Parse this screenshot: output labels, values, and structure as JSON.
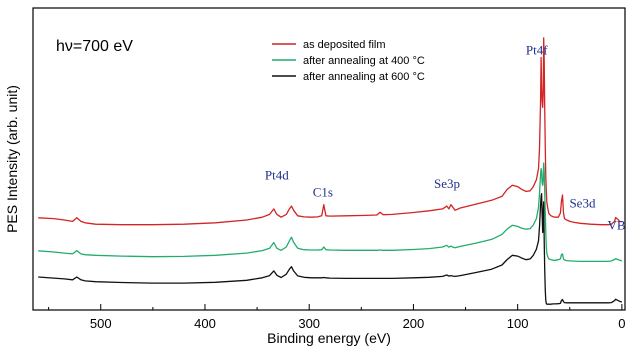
{
  "chart_data": {
    "type": "line",
    "xlabel": "Binding energy (eV)",
    "ylabel": "PES Intensity (arb. unit)",
    "xlim": [
      565,
      -3
    ],
    "ylim": [
      0,
      100
    ],
    "x_reversed": true,
    "xticks": [
      500,
      400,
      300,
      200,
      100,
      0
    ],
    "annotation_energy": "hν=700 eV",
    "peak_label_color": "#1f2f8f",
    "peak_labels": [
      {
        "text": "Pt4d",
        "x": 333,
        "y": 44
      },
      {
        "text": "C1s",
        "x": 285,
        "y": 38
      },
      {
        "text": "Se3p",
        "x": 162,
        "y": 41
      },
      {
        "text": "Pt4f",
        "x": 74,
        "y": 89
      },
      {
        "text": "Se3d",
        "x": 57,
        "y": 34
      },
      {
        "text": "VB",
        "x": 7,
        "y": 26
      }
    ],
    "legend": {
      "placement": "top-center"
    },
    "series": [
      {
        "name": "as deposited film",
        "color": "#d42424",
        "x": [
          560,
          545,
          535,
          527,
          523,
          519,
          515,
          505,
          480,
          450,
          420,
          390,
          360,
          345,
          338,
          334,
          331,
          327,
          322,
          319,
          317,
          315,
          311,
          305,
          298,
          292,
          288,
          286,
          284,
          280,
          265,
          250,
          235,
          232,
          229,
          220,
          200,
          185,
          172,
          168,
          166,
          164,
          162,
          160,
          155,
          140,
          125,
          115,
          110,
          105,
          100,
          96,
          92,
          88,
          85,
          82,
          80,
          79,
          78,
          77.5,
          77,
          76.5,
          76,
          75.5,
          75,
          74.5,
          74,
          73.5,
          73,
          72.5,
          72,
          71,
          70,
          68,
          66,
          64,
          61,
          59,
          58,
          57,
          56,
          55,
          53,
          50,
          45,
          40,
          30,
          20,
          13,
          10,
          7,
          6,
          4,
          2,
          0
        ],
        "y": [
          30.3,
          30,
          29.5,
          29,
          30.3,
          29,
          28.5,
          28,
          27.8,
          27.8,
          28,
          28.5,
          29.5,
          30.5,
          31.5,
          33.5,
          31.5,
          30.5,
          31.5,
          33.5,
          34.5,
          33,
          31,
          30.6,
          30.5,
          30.6,
          31,
          35,
          31,
          30.9,
          31,
          31.1,
          31.3,
          32.3,
          31.4,
          31.5,
          32.2,
          32.8,
          33.5,
          34.5,
          33.5,
          35,
          34,
          33,
          33.8,
          35.2,
          36.6,
          38,
          40.5,
          42,
          41.5,
          40.5,
          39.8,
          40,
          41.5,
          44,
          48,
          55,
          73,
          88,
          78,
          72,
          70,
          75,
          95,
          87,
          70,
          55,
          45,
          40,
          36,
          33.5,
          31.8,
          31,
          30.7,
          30.5,
          30.5,
          32,
          36,
          38.5,
          32,
          30,
          29.5,
          29,
          28.6,
          28.3,
          28,
          27.8,
          27.8,
          28,
          29,
          30.4,
          29.8,
          29,
          28.8
        ]
      },
      {
        "name": "after annealing at 400 °C",
        "color": "#22ad6e",
        "x": [
          560,
          545,
          535,
          527,
          523,
          519,
          515,
          505,
          480,
          450,
          420,
          390,
          360,
          345,
          338,
          334,
          331,
          327,
          322,
          319,
          317,
          315,
          311,
          305,
          298,
          292,
          288,
          286,
          284,
          280,
          265,
          250,
          235,
          232,
          229,
          220,
          200,
          185,
          172,
          168,
          166,
          164,
          162,
          160,
          155,
          140,
          125,
          115,
          110,
          105,
          100,
          96,
          92,
          88,
          85,
          82,
          80,
          79,
          78,
          77.5,
          77,
          76.5,
          76,
          75.5,
          75,
          74.5,
          74,
          73.5,
          73,
          72.5,
          72,
          71,
          70,
          68,
          66,
          64,
          61,
          59,
          58,
          57,
          56,
          55,
          53,
          50,
          45,
          40,
          30,
          20,
          13,
          10,
          7,
          6,
          4,
          2,
          0
        ],
        "y": [
          18.4,
          18,
          17.6,
          17.3,
          18.5,
          17.3,
          17,
          16.8,
          16.5,
          16.3,
          16.4,
          16.8,
          17.6,
          18.5,
          19.3,
          21.4,
          19.3,
          18.6,
          19.8,
          22,
          23.3,
          21.5,
          19.3,
          18.8,
          18.7,
          18.7,
          18.8,
          19.8,
          18.8,
          18.7,
          18.6,
          18.6,
          18.6,
          18.7,
          18.6,
          18.6,
          18.9,
          19.2,
          19.8,
          20.4,
          19.7,
          20.1,
          19.7,
          19.5,
          20,
          21.2,
          22.5,
          24.3,
          26.3,
          27.6,
          27.2,
          26.5,
          26.2,
          26.4,
          27.7,
          30,
          34,
          39,
          46,
          48,
          47,
          43,
          42,
          44,
          50,
          47,
          40,
          32,
          25,
          20,
          17.5,
          16.2,
          15.5,
          15.2,
          15,
          15,
          15.2,
          15.5,
          17,
          17.3,
          15.5,
          15.1,
          14.9,
          14.8,
          14.7,
          14.6,
          14.6,
          14.6,
          14.6,
          14.8,
          15.3,
          15.6,
          15.3,
          15,
          14.8
        ]
      },
      {
        "name": "after annealing at 600 °C",
        "color": "#111111",
        "x": [
          560,
          545,
          535,
          527,
          523,
          519,
          515,
          505,
          480,
          450,
          420,
          390,
          360,
          345,
          338,
          334,
          331,
          327,
          322,
          319,
          317,
          315,
          311,
          305,
          298,
          292,
          288,
          286,
          284,
          280,
          265,
          250,
          235,
          232,
          229,
          220,
          200,
          185,
          172,
          168,
          166,
          164,
          162,
          160,
          155,
          140,
          125,
          115,
          110,
          105,
          100,
          96,
          92,
          88,
          85,
          82,
          80,
          79,
          78,
          77.5,
          77,
          76.5,
          76,
          75.5,
          75,
          74.5,
          74,
          73.5,
          73,
          72.5,
          72,
          71,
          70,
          68,
          66,
          64,
          61,
          59,
          58,
          57,
          56,
          55,
          53,
          50,
          45,
          40,
          30,
          20,
          13,
          10,
          7,
          6,
          4,
          2,
          0
        ],
        "y": [
          9,
          8.6,
          8.3,
          8,
          9,
          8,
          7.6,
          7.3,
          7,
          6.8,
          6.8,
          7.1,
          7.8,
          8.7,
          9.5,
          11.2,
          9.6,
          8.8,
          10,
          11.8,
          12.7,
          11.2,
          9.4,
          8.9,
          8.7,
          8.7,
          8.7,
          8.8,
          8.7,
          8.6,
          8.5,
          8.5,
          8.5,
          8.5,
          8.5,
          8.5,
          8.7,
          8.9,
          9.2,
          9.7,
          9.3,
          9.5,
          9.3,
          9.2,
          9.5,
          10.6,
          11.8,
          13.3,
          15.3,
          16.8,
          16.5,
          15.8,
          15.2,
          15.5,
          16.8,
          19,
          22,
          27,
          35,
          38,
          39,
          32,
          25,
          32,
          36,
          22,
          12,
          4,
          0.5,
          -0.5,
          -0.8,
          -0.8,
          -0.8,
          -0.8,
          -0.7,
          -0.7,
          -0.6,
          -0.5,
          0.5,
          0.9,
          0.1,
          -0.2,
          -0.3,
          -0.3,
          -0.3,
          -0.3,
          -0.3,
          -0.3,
          -0.3,
          -0.2,
          0.5,
          1,
          0.6,
          0.2,
          0
        ]
      }
    ]
  }
}
